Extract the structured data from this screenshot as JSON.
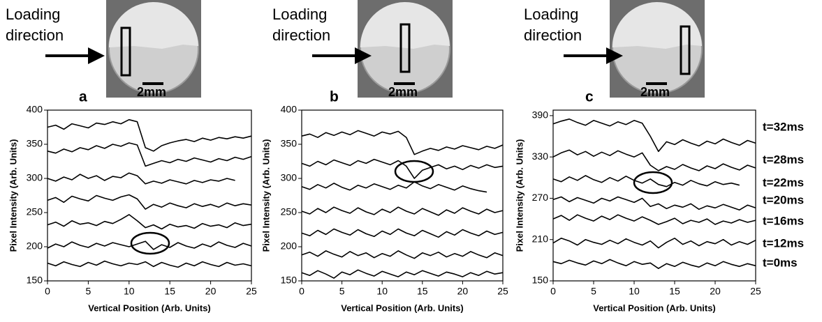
{
  "chart_data": [
    {
      "type": "line",
      "panel_label": "a",
      "inset_text": [
        "Loading",
        "direction"
      ],
      "scale_bar": "2mm",
      "xlabel": "Vertical Position (Arb. Units)",
      "ylabel": "Pixel Intensity (Arb. Units)",
      "x": [
        0,
        1,
        2,
        3,
        4,
        5,
        6,
        7,
        8,
        9,
        10,
        11,
        12,
        13,
        14,
        15,
        16,
        17,
        18,
        19,
        20,
        21,
        22,
        23,
        24,
        25
      ],
      "xlim": [
        0,
        25
      ],
      "xticks": [
        0,
        5,
        10,
        15,
        20,
        25
      ],
      "ylim": [
        150,
        400
      ],
      "yticks": [
        150,
        200,
        250,
        300,
        350,
        400
      ],
      "series": [
        {
          "color": "#000000",
          "values": [
            375,
            378,
            372,
            380,
            377,
            374,
            381,
            379,
            383,
            380,
            386,
            383,
            345,
            340,
            348,
            352,
            355,
            357,
            354,
            359,
            356,
            360,
            358,
            361,
            359,
            362
          ]
        },
        {
          "color": "#000000",
          "values": [
            340,
            337,
            343,
            339,
            345,
            342,
            348,
            344,
            350,
            347,
            352,
            349,
            318,
            322,
            326,
            323,
            328,
            325,
            330,
            327,
            324,
            329,
            326,
            331,
            328,
            332
          ]
        },
        {
          "color": "#000000",
          "values": [
            300,
            296,
            302,
            298,
            306,
            300,
            304,
            297,
            303,
            301,
            308,
            304,
            292,
            296,
            293,
            298,
            295,
            292,
            297,
            294,
            298,
            296,
            300,
            297,
            null,
            null
          ]
        },
        {
          "color": "#000000",
          "values": [
            268,
            272,
            265,
            274,
            270,
            267,
            275,
            271,
            268,
            273,
            276,
            270,
            255,
            262,
            258,
            264,
            260,
            257,
            263,
            259,
            262,
            258,
            264,
            260,
            263,
            261
          ]
        },
        {
          "color": "#000000",
          "values": [
            232,
            236,
            230,
            238,
            233,
            235,
            231,
            237,
            234,
            240,
            247,
            238,
            228,
            232,
            226,
            233,
            229,
            231,
            227,
            234,
            230,
            232,
            228,
            235,
            231,
            233
          ]
        },
        {
          "color": "#000000",
          "values": [
            198,
            204,
            200,
            207,
            202,
            199,
            205,
            201,
            206,
            203,
            200,
            204,
            208,
            196,
            203,
            199,
            206,
            201,
            198,
            204,
            200,
            207,
            202,
            199,
            205,
            201
          ]
        },
        {
          "color": "#000000",
          "values": [
            176,
            172,
            178,
            174,
            171,
            177,
            173,
            179,
            175,
            172,
            176,
            174,
            178,
            171,
            177,
            173,
            170,
            176,
            172,
            178,
            174,
            171,
            177,
            173,
            175,
            172
          ]
        }
      ]
    },
    {
      "type": "line",
      "panel_label": "b",
      "inset_text": [
        "Loading",
        "direction"
      ],
      "scale_bar": "2mm",
      "xlabel": "Vertical Position (Arb. Units)",
      "ylabel": "Pixel Intensity (Arb. Units)",
      "x": [
        0,
        1,
        2,
        3,
        4,
        5,
        6,
        7,
        8,
        9,
        10,
        11,
        12,
        13,
        14,
        15,
        16,
        17,
        18,
        19,
        20,
        21,
        22,
        23,
        24,
        25
      ],
      "xlim": [
        0,
        25
      ],
      "xticks": [
        0,
        5,
        10,
        15,
        20,
        25
      ],
      "ylim": [
        150,
        400
      ],
      "yticks": [
        150,
        200,
        250,
        300,
        350,
        400
      ],
      "series": [
        {
          "color": "#000000",
          "values": [
            362,
            365,
            360,
            367,
            363,
            368,
            364,
            370,
            366,
            362,
            368,
            365,
            369,
            360,
            335,
            340,
            344,
            341,
            346,
            343,
            348,
            345,
            342,
            347,
            344,
            349
          ]
        },
        {
          "color": "#000000",
          "values": [
            322,
            318,
            325,
            320,
            327,
            323,
            319,
            326,
            322,
            328,
            324,
            320,
            326,
            318,
            300,
            312,
            316,
            320,
            314,
            318,
            313,
            319,
            315,
            320,
            316,
            318
          ]
        },
        {
          "color": "#000000",
          "values": [
            288,
            284,
            291,
            286,
            293,
            287,
            283,
            290,
            286,
            292,
            288,
            284,
            290,
            286,
            295,
            289,
            285,
            291,
            287,
            283,
            289,
            285,
            282,
            280,
            null,
            null
          ]
        },
        {
          "color": "#000000",
          "values": [
            252,
            248,
            256,
            250,
            258,
            253,
            249,
            257,
            251,
            247,
            255,
            250,
            258,
            252,
            248,
            256,
            251,
            246,
            254,
            249,
            257,
            252,
            248,
            255,
            250,
            253
          ]
        },
        {
          "color": "#000000",
          "values": [
            220,
            216,
            224,
            218,
            226,
            221,
            217,
            225,
            219,
            215,
            223,
            218,
            226,
            220,
            216,
            224,
            219,
            214,
            222,
            217,
            225,
            220,
            216,
            223,
            218,
            221
          ]
        },
        {
          "color": "#000000",
          "values": [
            188,
            192,
            186,
            194,
            189,
            185,
            193,
            187,
            191,
            184,
            190,
            186,
            194,
            188,
            183,
            191,
            187,
            192,
            185,
            190,
            186,
            193,
            188,
            184,
            191,
            187
          ]
        },
        {
          "color": "#000000",
          "values": [
            162,
            158,
            165,
            160,
            154,
            163,
            159,
            166,
            161,
            157,
            164,
            160,
            156,
            163,
            159,
            165,
            161,
            157,
            163,
            160,
            156,
            162,
            158,
            164,
            160,
            162
          ]
        }
      ]
    },
    {
      "type": "line",
      "panel_label": "c",
      "inset_text": [
        "Loading",
        "direction"
      ],
      "scale_bar": "2mm",
      "xlabel": "Vertical Position (Arb. Units)",
      "ylabel": "Pixel Intensity (Arb. Units)",
      "x": [
        0,
        1,
        2,
        3,
        4,
        5,
        6,
        7,
        8,
        9,
        10,
        11,
        12,
        13,
        14,
        15,
        16,
        17,
        18,
        19,
        20,
        21,
        22,
        23,
        24,
        25
      ],
      "xlim": [
        0,
        25
      ],
      "xticks": [
        0,
        5,
        10,
        15,
        20,
        25
      ],
      "ylim": [
        150,
        398
      ],
      "yticks": [
        150,
        210,
        270,
        330,
        390
      ],
      "series": [
        {
          "name": "t=32ms",
          "color": "#000000",
          "values": [
            378,
            382,
            385,
            380,
            376,
            383,
            379,
            375,
            381,
            377,
            383,
            379,
            360,
            338,
            352,
            348,
            355,
            350,
            346,
            353,
            349,
            356,
            351,
            347,
            354,
            350
          ]
        },
        {
          "name": "t=28ms",
          "color": "#000000",
          "values": [
            330,
            336,
            340,
            333,
            338,
            331,
            337,
            332,
            339,
            334,
            330,
            336,
            318,
            310,
            316,
            312,
            319,
            314,
            310,
            317,
            313,
            320,
            315,
            311,
            318,
            314
          ]
        },
        {
          "name": "t=22ms",
          "color": "#000000",
          "values": [
            298,
            294,
            301,
            296,
            303,
            297,
            293,
            300,
            295,
            302,
            296,
            292,
            298,
            290,
            287,
            293,
            289,
            296,
            291,
            288,
            294,
            290,
            292,
            289,
            null,
            null
          ]
        },
        {
          "name": "t=20ms",
          "color": "#000000",
          "values": [
            268,
            272,
            265,
            271,
            267,
            263,
            270,
            266,
            272,
            268,
            264,
            270,
            258,
            262,
            255,
            260,
            257,
            262,
            254,
            259,
            256,
            261,
            257,
            253,
            260,
            256
          ]
        },
        {
          "name": "t=16ms",
          "color": "#000000",
          "values": [
            240,
            245,
            238,
            246,
            241,
            237,
            244,
            239,
            246,
            241,
            237,
            243,
            238,
            232,
            236,
            241,
            233,
            238,
            235,
            240,
            232,
            237,
            234,
            239,
            235,
            238
          ]
        },
        {
          "name": "t=12ms",
          "color": "#000000",
          "values": [
            205,
            212,
            208,
            202,
            210,
            206,
            203,
            209,
            204,
            211,
            206,
            202,
            208,
            198,
            206,
            212,
            203,
            208,
            201,
            207,
            204,
            210,
            202,
            207,
            203,
            209
          ]
        },
        {
          "name": "t=0ms",
          "color": "#000000",
          "values": [
            178,
            175,
            180,
            176,
            173,
            179,
            175,
            181,
            176,
            172,
            178,
            174,
            176,
            168,
            175,
            171,
            177,
            173,
            170,
            176,
            172,
            178,
            174,
            171,
            175,
            172
          ]
        }
      ]
    }
  ]
}
